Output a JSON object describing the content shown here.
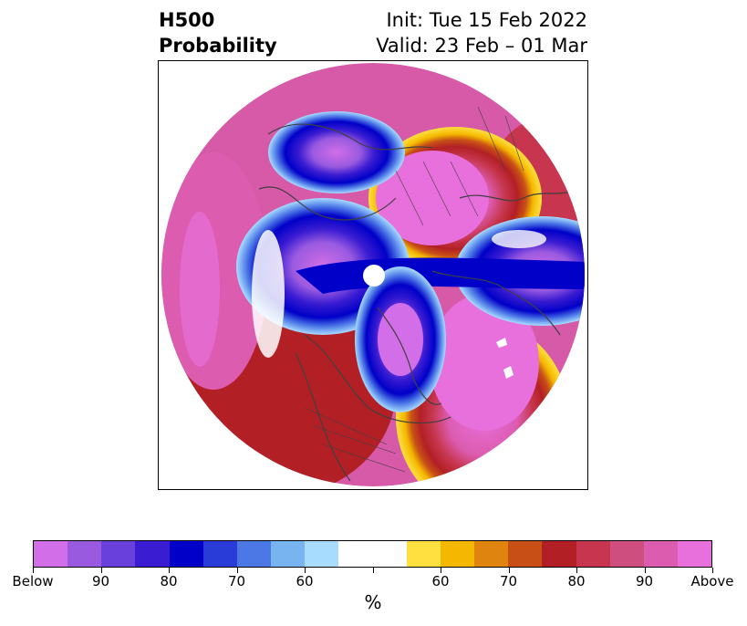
{
  "title": {
    "left_line1": "H500",
    "left_line2": "Probability",
    "right_line1": "Init: Tue 15 Feb 2022",
    "right_line2": "Valid: 23 Feb – 01 Mar"
  },
  "map": {
    "projection": "polar-stereographic (north pole centered)",
    "field": "500 hPa height probability (below/above normal)",
    "colors": {
      "above_90plus": "#e870dc",
      "above_strong": "#d65aa8",
      "above_mid": "#c7364e",
      "above_low": "#b22025",
      "orange": "#c85016",
      "amber": "#e08410",
      "gold": "#f4b800",
      "yellow": "#ffe040",
      "neutral": "#ffffff",
      "light_blue": "#a8dcff",
      "blue_1": "#78b4f0",
      "blue_2": "#4c78e6",
      "blue_3": "#2a3cd8",
      "blue_4": "#0000c8",
      "indigo": "#3a1cd2",
      "violet": "#6a40dc",
      "purple": "#9a5ae0",
      "below_90plus": "#d26ee8",
      "coastline": "#404040"
    }
  },
  "colorbar": {
    "colors": [
      "#d26ee8",
      "#9a5ae0",
      "#6a40dc",
      "#3a1cd2",
      "#0000c8",
      "#2a3cd8",
      "#4c78e6",
      "#78b4f0",
      "#a8dcff",
      "#ffffff",
      "#ffffff",
      "#ffe040",
      "#f4b800",
      "#e08410",
      "#c85016",
      "#b22025",
      "#c7364e",
      "#cf4e80",
      "#dc5cb0",
      "#e870dc"
    ],
    "tick_labels": [
      "Below",
      "90",
      "80",
      "70",
      "60",
      "",
      "60",
      "70",
      "80",
      "90",
      "Above"
    ],
    "unit": "%"
  }
}
